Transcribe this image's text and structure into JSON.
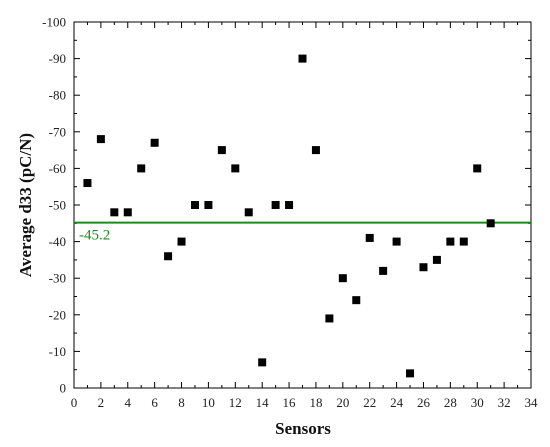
{
  "chart_data": {
    "type": "scatter",
    "xlabel": "Sensors",
    "ylabel": "Average d33 (pC/N)",
    "xlim": [
      0,
      34
    ],
    "ylim": [
      0,
      -100
    ],
    "x_ticks": [
      0,
      2,
      4,
      6,
      8,
      10,
      12,
      14,
      16,
      18,
      20,
      22,
      24,
      26,
      28,
      30,
      32,
      34
    ],
    "y_ticks": [
      0,
      -10,
      -20,
      -30,
      -40,
      -50,
      -60,
      -70,
      -80,
      -90,
      -100
    ],
    "grid": false,
    "marker_color": "#000000",
    "series": [
      {
        "x": [
          1,
          2,
          3,
          4,
          5,
          6,
          7,
          8,
          9,
          10,
          11,
          12,
          13,
          14,
          15,
          16,
          17,
          18,
          19,
          20,
          21,
          22,
          23,
          24,
          25,
          26,
          27,
          28,
          29,
          30,
          31
        ],
        "y": [
          -56,
          -68,
          -48,
          -48,
          -60,
          -67,
          -36,
          -40,
          -50,
          -50,
          -65,
          -60,
          -48,
          -7,
          -50,
          -50,
          -90,
          -65,
          -19,
          -30,
          -24,
          -41,
          -32,
          -40,
          -4,
          -33,
          -35,
          -40,
          -40,
          -60,
          -45
        ]
      }
    ],
    "reference_line": {
      "value": -45.2,
      "label": "-45.2",
      "color": "#1a8c1a"
    }
  }
}
